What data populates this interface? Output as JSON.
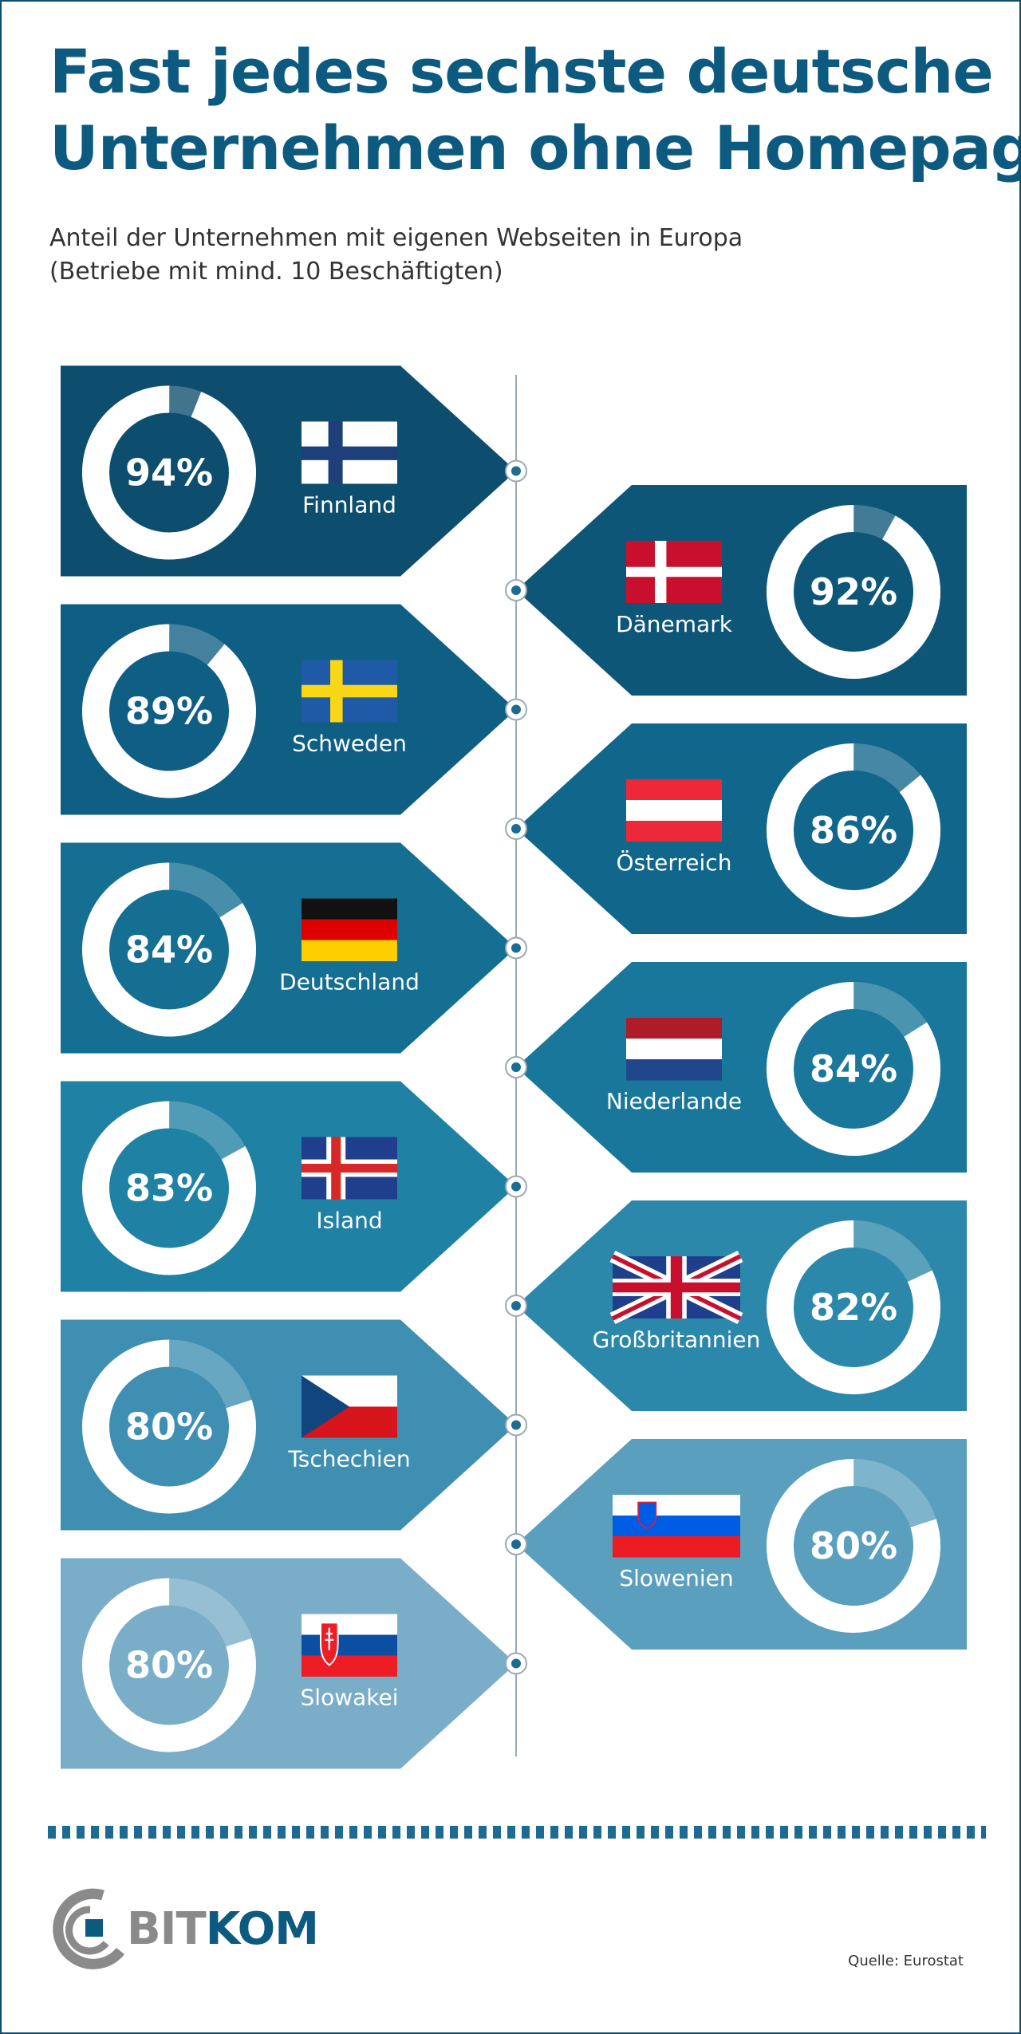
{
  "title_lines": [
    "Fast jedes sechste deutsche",
    "Unternehmen ohne Homepage"
  ],
  "subtitle_lines": [
    "Anteil der Unternehmen mit eigenen Webseiten in Europa",
    "(Betriebe mit mind. 10 Beschäftigten)"
  ],
  "chart_data": {
    "type": "donut",
    "title": "Fast jedes sechste deutsche Unternehmen ohne Homepage",
    "subtitle": "Anteil der Unternehmen mit eigenen Webseiten in Europa (Betriebe mit mind. 10 Beschäftigten)",
    "unit": "%",
    "max": 100,
    "items": [
      {
        "country": "Finnland",
        "value": 94,
        "label": "94%",
        "flag": "finland-flag",
        "side": "left",
        "color": "#0d4e6f"
      },
      {
        "country": "Dänemark",
        "value": 92,
        "label": "92%",
        "flag": "denmark-flag",
        "side": "right",
        "color": "#0d5678"
      },
      {
        "country": "Schweden",
        "value": 89,
        "label": "89%",
        "flag": "sweden-flag",
        "side": "left",
        "color": "#0f5e83"
      },
      {
        "country": "Österreich",
        "value": 86,
        "label": "86%",
        "flag": "austria-flag",
        "side": "right",
        "color": "#11668b"
      },
      {
        "country": "Deutschland",
        "value": 84,
        "label": "84%",
        "flag": "germany-flag",
        "side": "left",
        "color": "#146f92"
      },
      {
        "country": "Niederlande",
        "value": 84,
        "label": "84%",
        "flag": "netherlands-flag",
        "side": "right",
        "color": "#18779a"
      },
      {
        "country": "Island",
        "value": 83,
        "label": "83%",
        "flag": "iceland-flag",
        "side": "left",
        "color": "#1f81a3"
      },
      {
        "country": "Großbritannien",
        "value": 82,
        "label": "82%",
        "flag": "uk-flag",
        "side": "right",
        "color": "#2c88aa"
      },
      {
        "country": "Tschechien",
        "value": 80,
        "label": "80%",
        "flag": "czech-flag",
        "side": "left",
        "color": "#3e8fb1"
      },
      {
        "country": "Slowenien",
        "value": 80,
        "label": "80%",
        "flag": "slovenia-flag",
        "side": "right",
        "color": "#5a9fbe"
      },
      {
        "country": "Slowakei",
        "value": 80,
        "label": "80%",
        "flag": "slovakia-flag",
        "side": "left",
        "color": "#7aaec8"
      }
    ]
  },
  "footer": {
    "logo_bit": "BIT",
    "logo_kom": "KOM",
    "source": "Quelle: Eurostat"
  }
}
